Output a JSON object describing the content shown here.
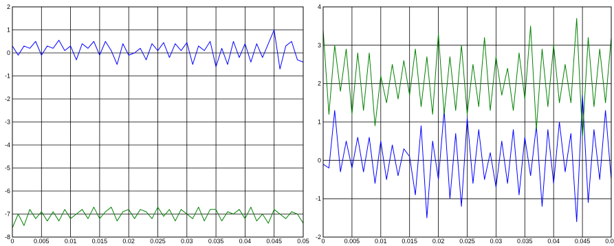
{
  "chart_data": [
    {
      "type": "line",
      "title": "",
      "xlabel": "",
      "ylabel": "",
      "xlim": [
        0,
        0.05
      ],
      "ylim": [
        -8,
        2
      ],
      "grid": true,
      "xticks": [
        0,
        0.005,
        0.01,
        0.015,
        0.02,
        0.025,
        0.03,
        0.035,
        0.04,
        0.045,
        0.05
      ],
      "xtick_labels": [
        "0",
        "0.005",
        "0.01",
        "0.015",
        "0.02",
        "0.025",
        "0.03",
        "0.035",
        "0.04",
        "0.045",
        "0.05"
      ],
      "yticks": [
        -8,
        -7,
        -6,
        -5,
        -4,
        -3,
        -2,
        -1,
        0,
        1,
        2
      ],
      "ytick_labels": [
        "-8",
        "-7",
        "-6",
        "-5",
        "-4",
        "-3",
        "-2",
        "-1",
        "0",
        "1",
        "2"
      ],
      "series": [
        {
          "color": "#0000ff",
          "x": [
            0,
            0.001,
            0.002,
            0.003,
            0.004,
            0.005,
            0.006,
            0.007,
            0.008,
            0.009,
            0.01,
            0.011,
            0.012,
            0.013,
            0.014,
            0.015,
            0.016,
            0.017,
            0.018,
            0.019,
            0.02,
            0.021,
            0.022,
            0.023,
            0.024,
            0.025,
            0.026,
            0.027,
            0.028,
            0.029,
            0.03,
            0.031,
            0.032,
            0.033,
            0.034,
            0.035,
            0.036,
            0.037,
            0.038,
            0.039,
            0.04,
            0.041,
            0.042,
            0.043,
            0.044,
            0.045,
            0.046,
            0.047,
            0.048,
            0.049,
            0.05
          ],
          "y": [
            0.3,
            -0.1,
            0.3,
            0.2,
            0.5,
            -0.1,
            0.3,
            0.2,
            0.55,
            0.1,
            0.3,
            -0.3,
            0.4,
            0.2,
            0.5,
            -0.1,
            0.5,
            0.1,
            -0.5,
            0.4,
            -0.1,
            0.0,
            0.2,
            -0.3,
            0.4,
            0.1,
            0.45,
            -0.2,
            0.4,
            0.1,
            0.45,
            -0.5,
            0.3,
            0.1,
            0.5,
            -0.6,
            0.2,
            -0.5,
            0.5,
            -0.2,
            0.4,
            -0.4,
            0.4,
            -0.2,
            0.4,
            1.0,
            -0.7,
            0.3,
            0.5,
            -0.3,
            -0.4
          ]
        },
        {
          "color": "#008000",
          "x": [
            0,
            0.001,
            0.002,
            0.003,
            0.004,
            0.005,
            0.006,
            0.007,
            0.008,
            0.009,
            0.01,
            0.011,
            0.012,
            0.013,
            0.014,
            0.015,
            0.016,
            0.017,
            0.018,
            0.019,
            0.02,
            0.021,
            0.022,
            0.023,
            0.024,
            0.025,
            0.026,
            0.027,
            0.028,
            0.029,
            0.03,
            0.031,
            0.032,
            0.033,
            0.034,
            0.035,
            0.036,
            0.037,
            0.038,
            0.039,
            0.04,
            0.041,
            0.042,
            0.043,
            0.044,
            0.045,
            0.046,
            0.047,
            0.048,
            0.049,
            0.05
          ],
          "y": [
            -7.6,
            -7.0,
            -7.5,
            -6.8,
            -7.2,
            -6.9,
            -7.3,
            -6.9,
            -7.3,
            -6.8,
            -7.2,
            -7.0,
            -6.8,
            -7.2,
            -6.7,
            -7.2,
            -6.9,
            -6.7,
            -7.3,
            -6.9,
            -6.8,
            -7.2,
            -6.8,
            -6.9,
            -7.2,
            -6.7,
            -7.1,
            -6.8,
            -7.3,
            -6.8,
            -7.0,
            -7.2,
            -6.7,
            -7.3,
            -6.8,
            -6.8,
            -7.3,
            -6.9,
            -7.0,
            -6.8,
            -7.2,
            -6.7,
            -7.3,
            -7.0,
            -7.4,
            -6.8,
            -7.0,
            -7.2,
            -6.9,
            -7.0,
            -7.4
          ]
        }
      ]
    },
    {
      "type": "line",
      "title": "",
      "xlabel": "",
      "ylabel": "",
      "xlim": [
        0,
        0.05
      ],
      "ylim": [
        -2,
        4
      ],
      "grid": true,
      "xticks": [
        0,
        0.005,
        0.01,
        0.015,
        0.02,
        0.025,
        0.03,
        0.035,
        0.04,
        0.045,
        0.05
      ],
      "xtick_labels": [
        "0",
        "0.005",
        "0.01",
        "0.015",
        "0.02",
        "0.025",
        "0.03",
        "0.035",
        "0.04",
        "0.045",
        "0.05"
      ],
      "yticks": [
        -2,
        -1,
        0,
        1,
        2,
        3,
        4
      ],
      "ytick_labels": [
        "-2",
        "-1",
        "0",
        "1",
        "2",
        "3",
        "4"
      ],
      "series": [
        {
          "color": "#0000ff",
          "x": [
            0,
            0.001,
            0.002,
            0.003,
            0.004,
            0.005,
            0.006,
            0.007,
            0.008,
            0.009,
            0.01,
            0.011,
            0.012,
            0.013,
            0.014,
            0.015,
            0.016,
            0.017,
            0.018,
            0.019,
            0.02,
            0.021,
            0.022,
            0.023,
            0.024,
            0.025,
            0.026,
            0.027,
            0.028,
            0.029,
            0.03,
            0.031,
            0.032,
            0.033,
            0.034,
            0.035,
            0.036,
            0.037,
            0.038,
            0.039,
            0.04,
            0.041,
            0.042,
            0.043,
            0.044,
            0.045,
            0.046,
            0.047,
            0.048,
            0.049,
            0.05
          ],
          "y": [
            -0.1,
            -0.2,
            1.3,
            -0.3,
            0.5,
            -0.2,
            0.6,
            -0.3,
            0.6,
            -0.6,
            0.5,
            -0.5,
            0.4,
            -0.4,
            0.3,
            0.1,
            -0.9,
            0.9,
            -1.5,
            0.5,
            -0.5,
            1.3,
            -1.0,
            0.7,
            -1.2,
            1.1,
            -0.6,
            0.8,
            -0.5,
            0.2,
            -0.7,
            0.5,
            -0.6,
            0.8,
            -0.9,
            0.6,
            -0.4,
            0.9,
            -1.2,
            0.8,
            -0.6,
            1.0,
            -0.3,
            0.7,
            -1.6,
            1.7,
            -1.1,
            0.8,
            -0.5,
            1.3,
            -0.5
          ]
        },
        {
          "color": "#008000",
          "x": [
            0,
            0.001,
            0.002,
            0.003,
            0.004,
            0.005,
            0.006,
            0.007,
            0.008,
            0.009,
            0.01,
            0.011,
            0.012,
            0.013,
            0.014,
            0.015,
            0.016,
            0.017,
            0.018,
            0.019,
            0.02,
            0.021,
            0.022,
            0.023,
            0.024,
            0.025,
            0.026,
            0.027,
            0.028,
            0.029,
            0.03,
            0.031,
            0.032,
            0.033,
            0.034,
            0.035,
            0.036,
            0.037,
            0.038,
            0.039,
            0.04,
            0.041,
            0.042,
            0.043,
            0.044,
            0.045,
            0.046,
            0.047,
            0.048,
            0.049,
            0.05
          ],
          "y": [
            3.4,
            1.2,
            3.0,
            1.8,
            2.9,
            1.2,
            2.8,
            1.3,
            2.8,
            0.9,
            2.2,
            1.5,
            2.5,
            1.6,
            2.6,
            1.7,
            2.9,
            1.4,
            2.7,
            1.2,
            3.3,
            1.2,
            2.7,
            1.3,
            3.0,
            1.2,
            2.5,
            1.4,
            3.2,
            1.3,
            2.7,
            1.7,
            2.4,
            1.3,
            2.8,
            1.6,
            3.5,
            0.8,
            2.9,
            1.4,
            3.0,
            1.5,
            2.5,
            1.5,
            3.7,
            0.6,
            3.2,
            1.4,
            2.9,
            1.5,
            3.2
          ]
        }
      ]
    }
  ]
}
